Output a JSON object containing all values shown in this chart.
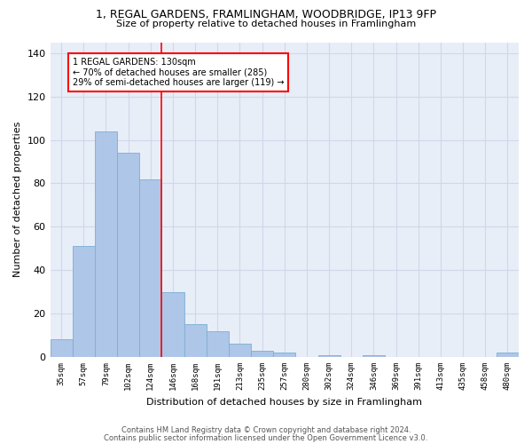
{
  "title_line1": "1, REGAL GARDENS, FRAMLINGHAM, WOODBRIDGE, IP13 9FP",
  "title_line2": "Size of property relative to detached houses in Framlingham",
  "xlabel": "Distribution of detached houses by size in Framlingham",
  "ylabel": "Number of detached properties",
  "categories": [
    "35sqm",
    "57sqm",
    "79sqm",
    "102sqm",
    "124sqm",
    "146sqm",
    "168sqm",
    "191sqm",
    "213sqm",
    "235sqm",
    "257sqm",
    "280sqm",
    "302sqm",
    "324sqm",
    "346sqm",
    "369sqm",
    "391sqm",
    "413sqm",
    "435sqm",
    "458sqm",
    "480sqm"
  ],
  "values": [
    8,
    51,
    104,
    94,
    82,
    30,
    15,
    12,
    6,
    3,
    2,
    0,
    1,
    0,
    1,
    0,
    0,
    0,
    0,
    0,
    2
  ],
  "bar_color": "#aec6e8",
  "bar_edge_color": "#7aafd4",
  "vline_color": "red",
  "vline_x_index": 4,
  "annotation_text": "1 REGAL GARDENS: 130sqm\n← 70% of detached houses are smaller (285)\n29% of semi-detached houses are larger (119) →",
  "annotation_box_color": "white",
  "annotation_box_edge_color": "red",
  "ylim": [
    0,
    145
  ],
  "yticks": [
    0,
    20,
    40,
    60,
    80,
    100,
    120,
    140
  ],
  "grid_color": "#d0d8e8",
  "bg_color": "#e8eef8",
  "fig_bg_color": "#ffffff",
  "footer_line1": "Contains HM Land Registry data © Crown copyright and database right 2024.",
  "footer_line2": "Contains public sector information licensed under the Open Government Licence v3.0."
}
